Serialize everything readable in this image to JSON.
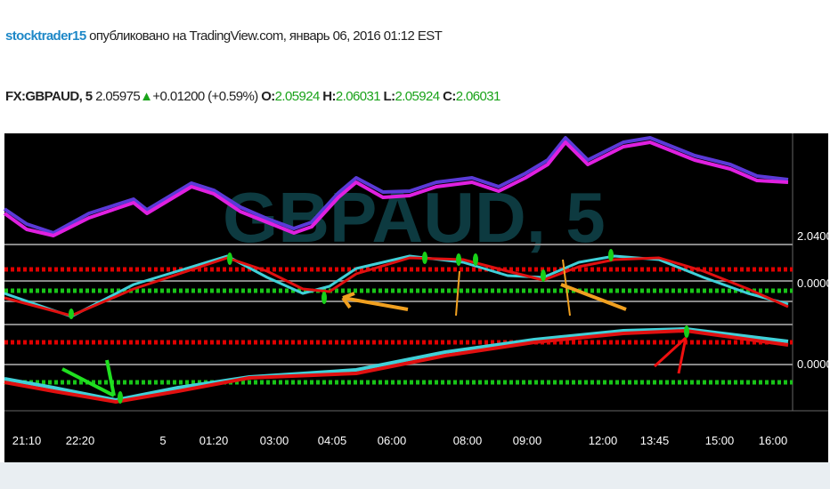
{
  "header": {
    "author": "stocktrader15",
    "published": "опубликовано на TradingView.com, январь 06, 2016 01:12 EST"
  },
  "quote": {
    "symbol": "FX:GBPAUD, 5",
    "last": "2.05975",
    "change": "+0.01200 (+0.59%)",
    "o_label": "O:",
    "o": "2.05924",
    "h_label": "H:",
    "h": "2.06031",
    "l_label": "L:",
    "l": "2.05924",
    "c_label": "C:",
    "c": "2.06031"
  },
  "chart": {
    "watermark": "GBPAUD, 5",
    "price_labels": [
      "2.0400",
      "0.0000",
      "0.0000"
    ],
    "time_labels": [
      "21:10",
      "22:20",
      "5",
      "01:20",
      "03:00",
      "04:05",
      "06:00",
      "08:00",
      "09:00",
      "12:00",
      "13:45",
      "15:00",
      "16:00"
    ]
  }
}
